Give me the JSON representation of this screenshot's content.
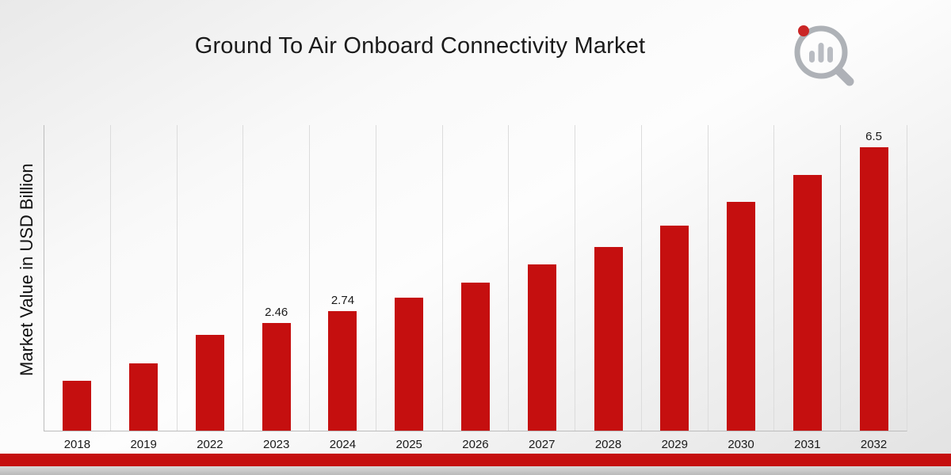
{
  "page": {
    "title": "Ground To Air Onboard Connectivity Market"
  },
  "chart_data": {
    "type": "bar",
    "title": "Ground To Air Onboard Connectivity Market",
    "xlabel": "",
    "ylabel": "Market Value in USD Billion",
    "categories": [
      "2018",
      "2019",
      "2022",
      "2023",
      "2024",
      "2025",
      "2026",
      "2027",
      "2028",
      "2029",
      "2030",
      "2031",
      "2032"
    ],
    "values": [
      1.15,
      1.55,
      2.2,
      2.46,
      2.74,
      3.05,
      3.4,
      3.8,
      4.2,
      4.7,
      5.25,
      5.85,
      6.5
    ],
    "data_labels": [
      null,
      null,
      null,
      "2.46",
      "2.74",
      null,
      null,
      null,
      null,
      null,
      null,
      null,
      "6.5"
    ],
    "ylim": [
      0,
      7
    ],
    "grid": "vertical",
    "legend": false,
    "bar_color": "#c50f0f",
    "colors": {
      "footer_red": "#c50f0f",
      "footer_gray": "#bfbfbf",
      "axis": "#bdbdbd",
      "gridline": "#dcdcdc",
      "title_text": "#1b1b1b",
      "logo_gray": "#a6aab0",
      "logo_red": "#c50f0f"
    }
  }
}
